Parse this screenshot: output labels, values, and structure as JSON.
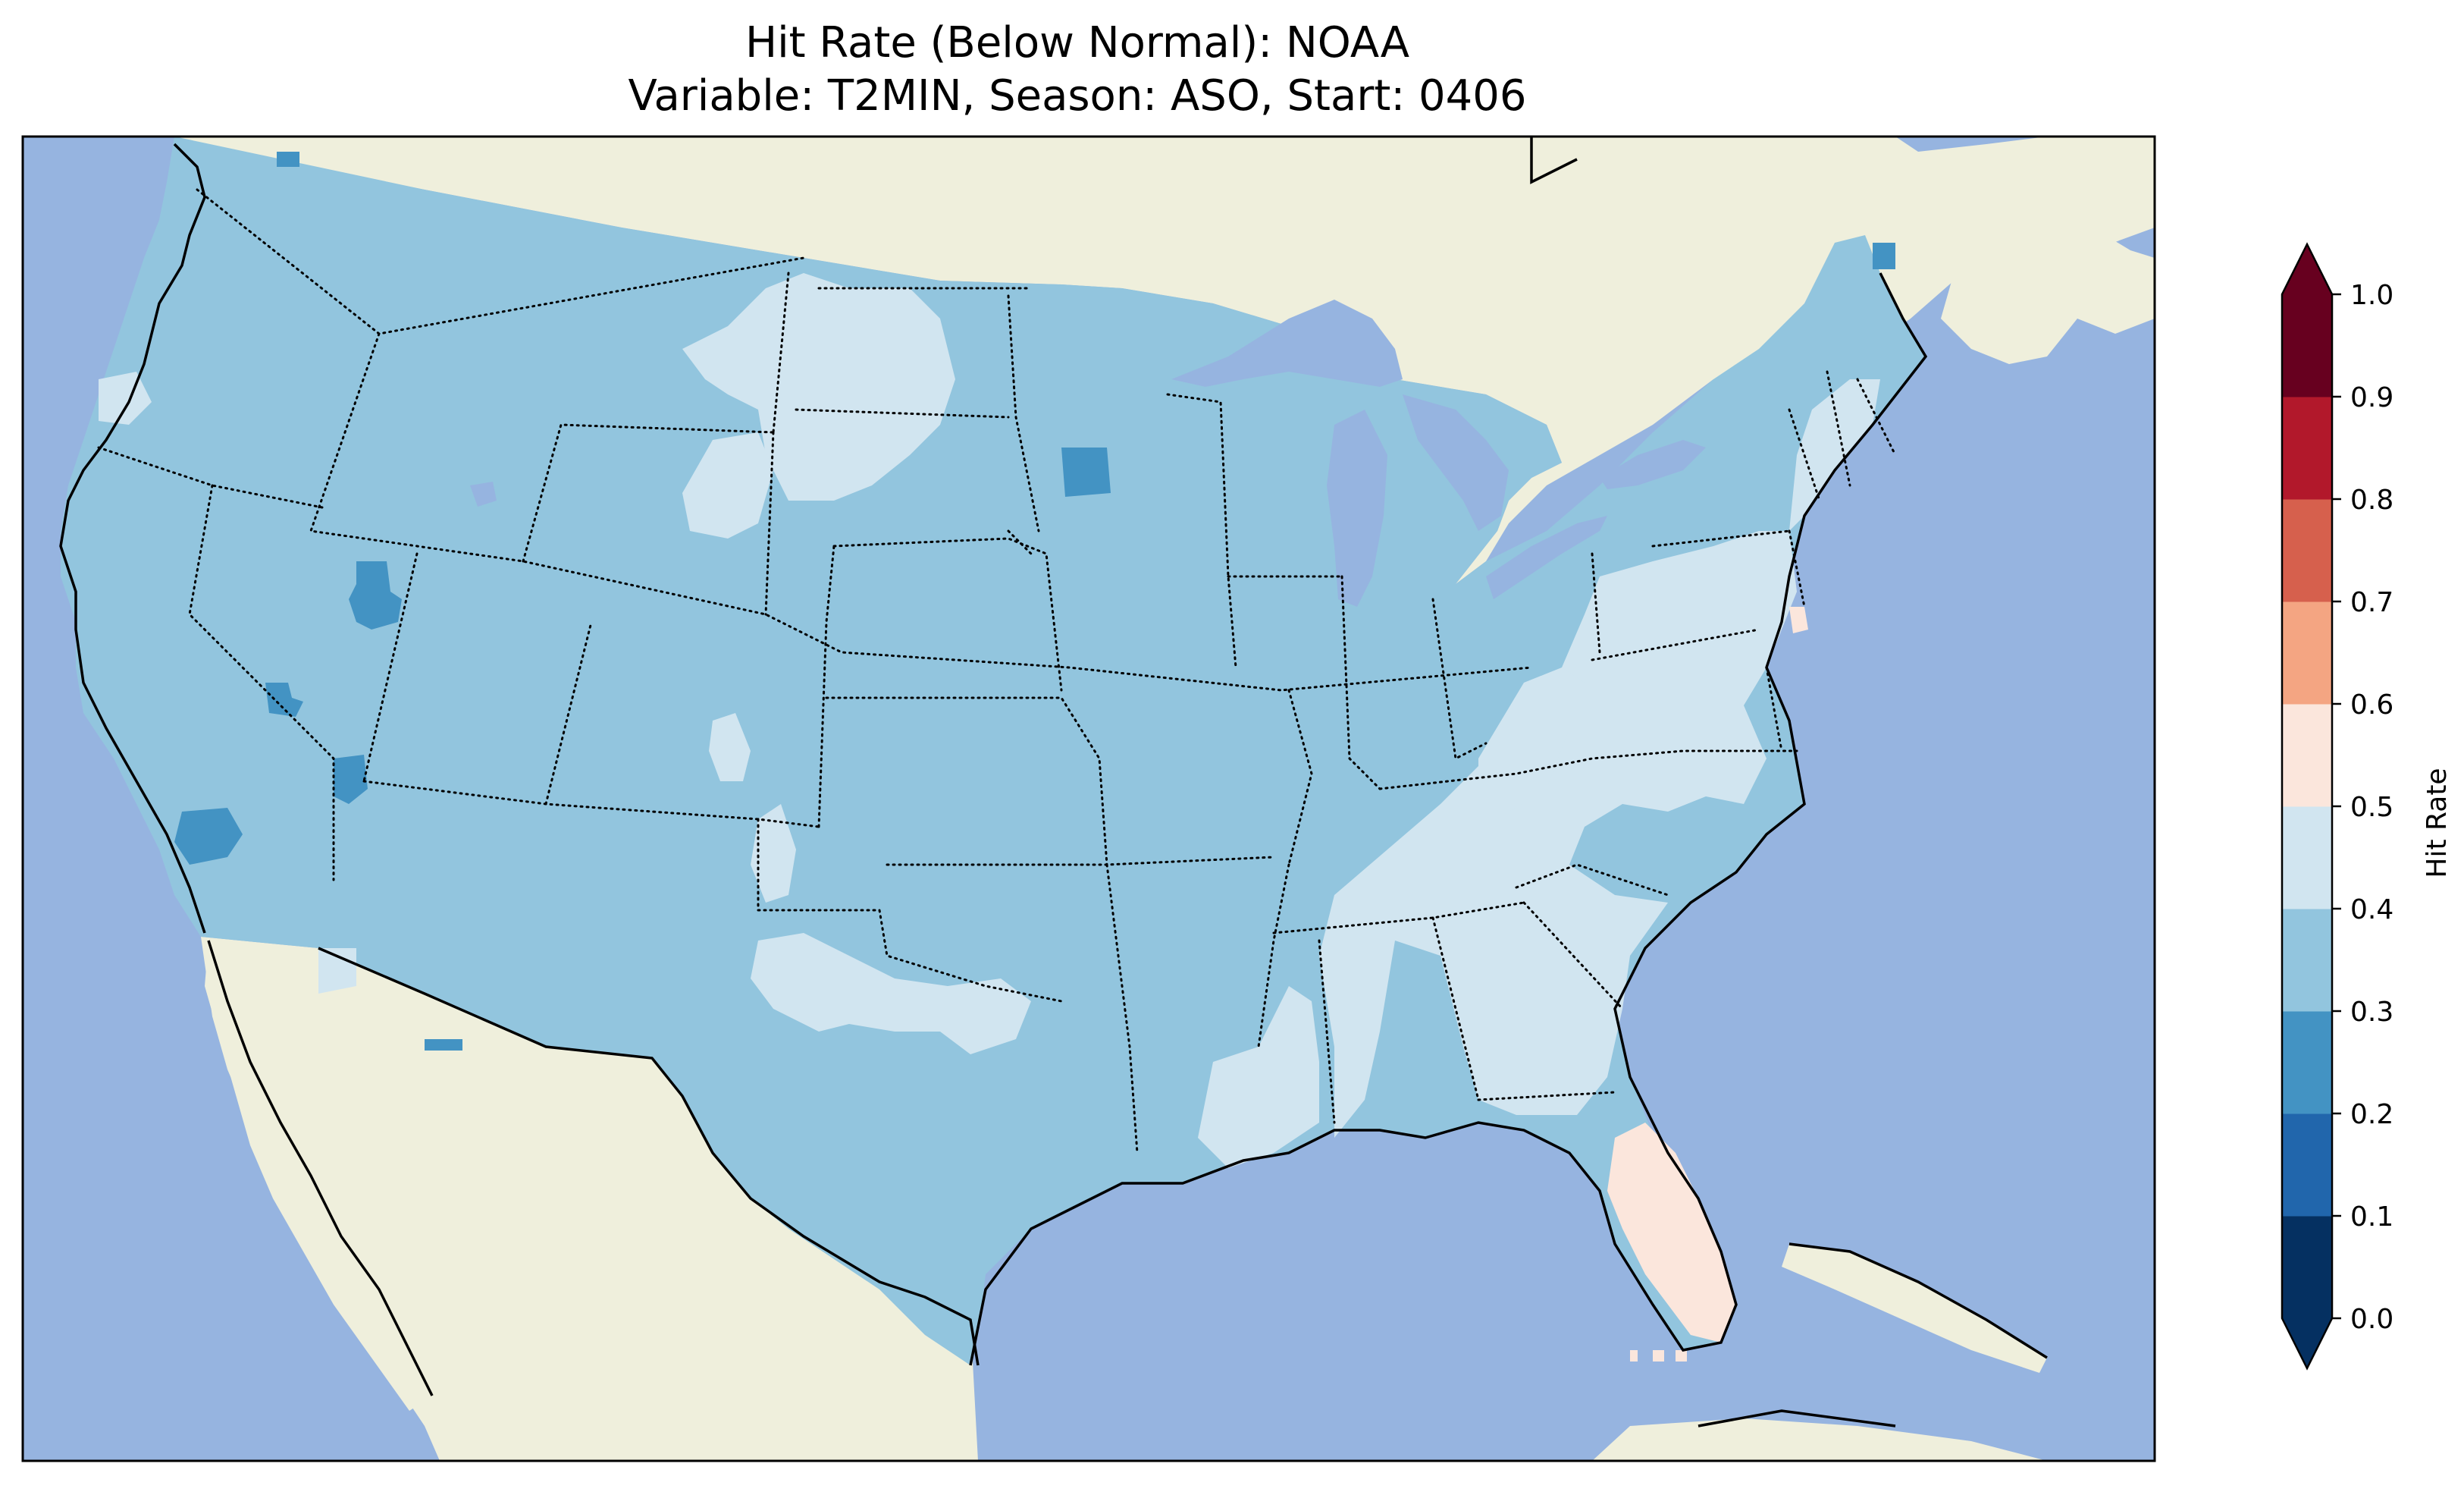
{
  "title": {
    "line1": "Hit Rate (Below Normal): NOAA",
    "line2": "Variable: T2MIN, Season: ASO, Start: 0406"
  },
  "colors": {
    "ocean": "#96b4e0",
    "land_outside": "#efefdc",
    "lake": "#96b4e0"
  },
  "colorbar": {
    "label": "Hit Rate",
    "ticks": [
      "0.0",
      "0.1",
      "0.2",
      "0.3",
      "0.4",
      "0.5",
      "0.6",
      "0.7",
      "0.8",
      "0.9",
      "1.0"
    ],
    "levels": [
      0.0,
      0.1,
      0.2,
      0.3,
      0.4,
      0.5,
      0.6,
      0.7,
      0.8,
      0.9,
      1.0
    ],
    "colors": [
      "#053061",
      "#2166ac",
      "#4393c3",
      "#92c5de",
      "#d1e5f0",
      "#fbe6dc",
      "#f4a582",
      "#d6604d",
      "#b2182b",
      "#67001f"
    ],
    "extend": "both"
  },
  "map_data": {
    "dominant_range": [
      0.3,
      0.4
    ],
    "regions": [
      {
        "name": "Western and Central US",
        "value_range": [
          0.3,
          0.4
        ]
      },
      {
        "name": "Southeast / Ohio Valley / Mid-Atlantic",
        "value_range": [
          0.4,
          0.5
        ]
      },
      {
        "name": "Southern Florida",
        "value_range": [
          0.5,
          0.6
        ]
      },
      {
        "name": "Northern Plains / West Texas patches",
        "value_range": [
          0.4,
          0.5
        ]
      },
      {
        "name": "Nevada / Southern California / Minnesota spots",
        "value_range": [
          0.2,
          0.3
        ]
      }
    ]
  }
}
